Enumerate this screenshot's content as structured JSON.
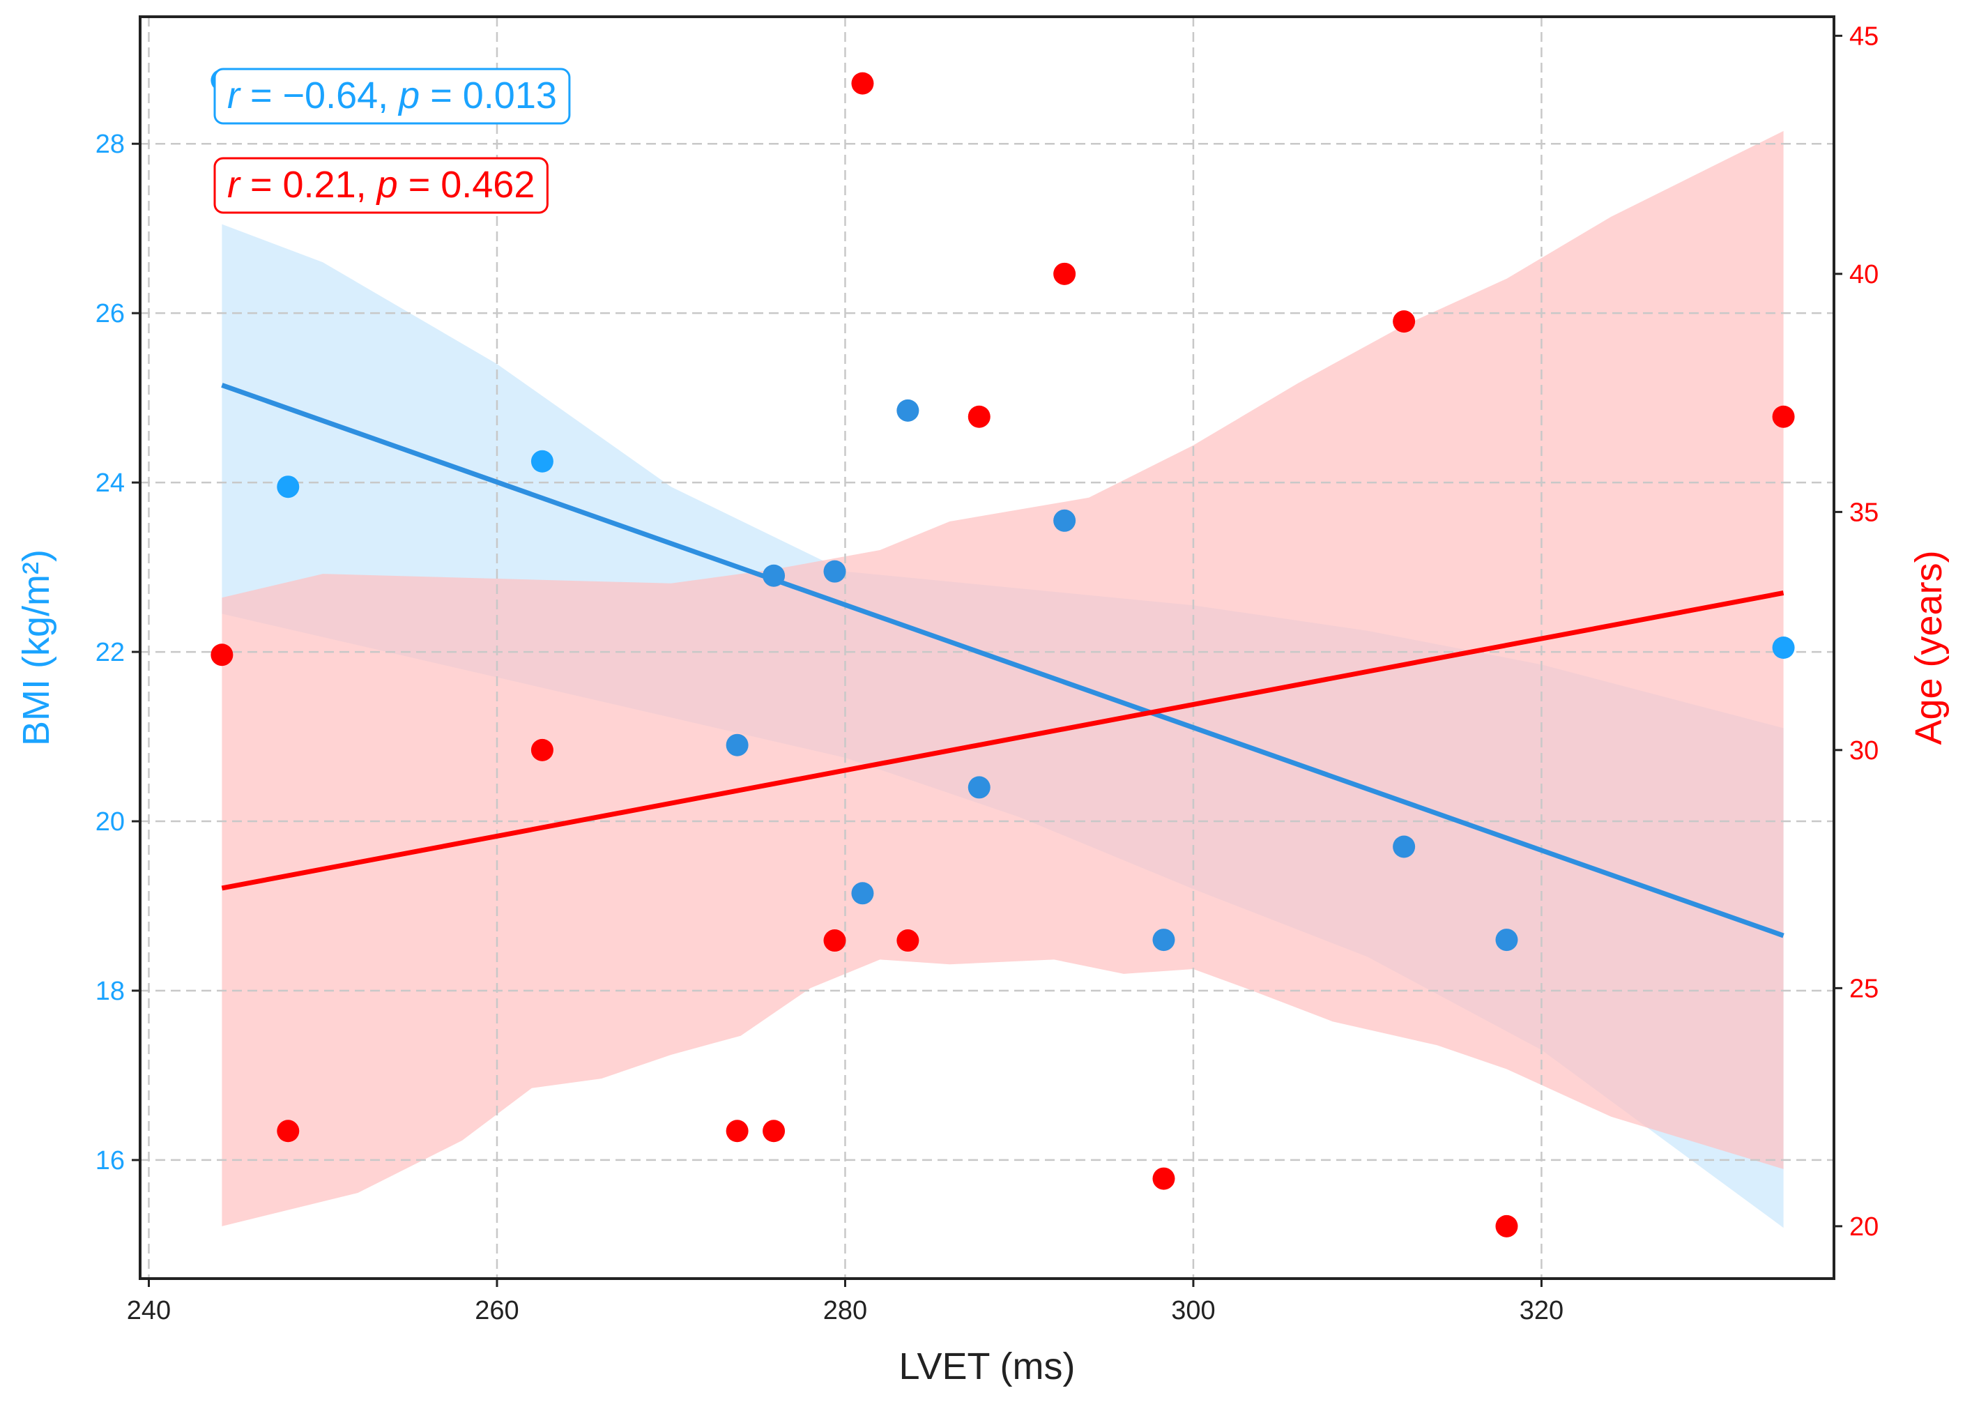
{
  "chart_data": {
    "type": "scatter",
    "xlabel": "LVET (ms)",
    "ylabel_left": "BMI (kg/m²)",
    "ylabel_right": "Age (years)",
    "xlim": [
      239.5,
      336.8
    ],
    "ylim_left": [
      14.6,
      29.5
    ],
    "ylim_right": [
      18.9,
      45.4
    ],
    "x_ticks": [
      240,
      260,
      280,
      300,
      320
    ],
    "y_left_ticks": [
      16,
      18,
      20,
      22,
      24,
      26,
      28
    ],
    "y_right_ticks": [
      20,
      25,
      30,
      35,
      40,
      45
    ],
    "grid": true,
    "colors": {
      "bmi": "#1aa3ff",
      "bmi_line": "#2e8fe0",
      "bmi_band": "#bfe3fb",
      "age": "#ff0000",
      "age_band": "#ffc0c0",
      "axis": "#222222"
    },
    "series": [
      {
        "name": "BMI",
        "axis": "left",
        "x": [
          244.2,
          248.0,
          262.6,
          273.8,
          275.9,
          279.4,
          281.0,
          283.6,
          287.7,
          292.6,
          298.3,
          312.1,
          318.0,
          333.9
        ],
        "y": [
          28.75,
          23.95,
          24.25,
          20.9,
          22.9,
          22.95,
          19.15,
          24.85,
          20.4,
          23.55,
          18.6,
          19.7,
          18.6,
          22.05
        ],
        "fit": {
          "x": [
            244.2,
            333.9
          ],
          "y": [
            25.15,
            18.65
          ]
        },
        "ci_lower": [
          [
            244.2,
            22.45
          ],
          [
            260,
            21.7
          ],
          [
            280,
            20.75
          ],
          [
            290,
            20.05
          ],
          [
            300,
            19.2
          ],
          [
            310,
            18.4
          ],
          [
            320,
            17.3
          ],
          [
            333.9,
            15.2
          ]
        ],
        "ci_upper": [
          [
            244.2,
            27.05
          ],
          [
            250,
            26.6
          ],
          [
            260,
            25.4
          ],
          [
            270,
            23.95
          ],
          [
            280,
            22.95
          ],
          [
            290,
            22.75
          ],
          [
            300,
            22.55
          ],
          [
            310,
            22.25
          ],
          [
            320,
            21.85
          ],
          [
            333.9,
            21.1
          ]
        ]
      },
      {
        "name": "Age",
        "axis": "right",
        "x": [
          244.2,
          248.0,
          262.6,
          273.8,
          275.9,
          279.4,
          281.0,
          283.6,
          287.7,
          292.6,
          298.3,
          312.1,
          318.0,
          333.9
        ],
        "y": [
          32,
          22,
          30,
          22,
          22,
          26,
          44,
          26,
          37,
          40,
          21,
          39,
          20,
          37
        ],
        "fit": {
          "x": [
            244.2,
            333.9
          ],
          "y": [
            27.1,
            33.3
          ]
        },
        "ci_lower": [
          [
            244.2,
            20.0
          ],
          [
            252,
            20.7
          ],
          [
            258,
            21.8
          ],
          [
            262,
            22.9
          ],
          [
            266,
            23.1
          ],
          [
            270,
            23.6
          ],
          [
            274,
            24.0
          ],
          [
            278,
            25.0
          ],
          [
            282,
            25.6
          ],
          [
            286,
            25.5
          ],
          [
            292,
            25.6
          ],
          [
            296,
            25.3
          ],
          [
            300,
            25.4
          ],
          [
            303,
            25.0
          ],
          [
            308,
            24.3
          ],
          [
            314,
            23.8
          ],
          [
            318,
            23.3
          ],
          [
            324,
            22.3
          ],
          [
            333.9,
            21.2
          ]
        ],
        "ci_upper": [
          [
            244.2,
            33.2
          ],
          [
            250,
            33.7
          ],
          [
            260,
            33.6
          ],
          [
            270,
            33.5
          ],
          [
            276,
            33.8
          ],
          [
            282,
            34.2
          ],
          [
            286,
            34.8
          ],
          [
            294,
            35.3
          ],
          [
            300,
            36.4
          ],
          [
            306,
            37.7
          ],
          [
            312,
            38.9
          ],
          [
            318,
            39.9
          ],
          [
            324,
            41.2
          ],
          [
            333.9,
            43.0
          ]
        ]
      }
    ],
    "annotations": [
      {
        "name": "bmi-stats",
        "r_label": "r",
        "r_text": " = −0.64, ",
        "p_label": "p",
        "p_text": " = 0.013",
        "color": "#1aa3ff"
      },
      {
        "name": "age-stats",
        "r_label": "r",
        "r_text": " = 0.21, ",
        "p_label": "p",
        "p_text": " = 0.462",
        "color": "#ff0000"
      }
    ]
  }
}
